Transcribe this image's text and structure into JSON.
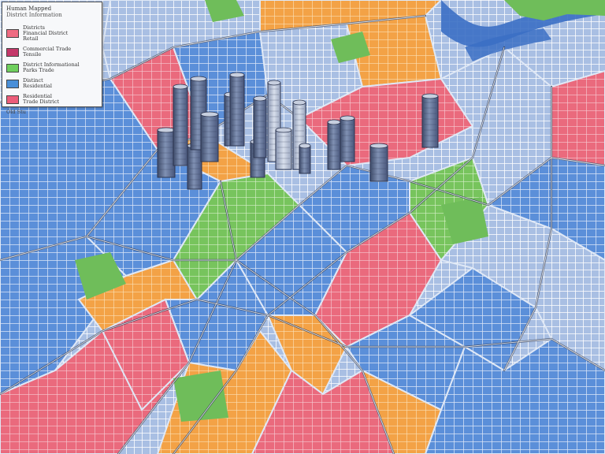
{
  "legend": {
    "title": "Human Mapped",
    "subtitle": "District Information",
    "items": [
      {
        "labels": [
          "Districts",
          "Financial District",
          "Retail"
        ],
        "color": "#ee6b82"
      },
      {
        "labels": [
          "Commercial Trade",
          "Tensile"
        ],
        "color": "#c4386a"
      },
      {
        "labels": [
          "District Informational",
          "Parks Trade"
        ],
        "color": "#6fcf5e"
      },
      {
        "labels": [
          "Distinct",
          "Residential"
        ],
        "color": "#4a8fd8"
      },
      {
        "labels": [
          "Residential",
          "Trade District"
        ],
        "color": "#ec5d7a"
      }
    ],
    "footer": "Old Stu"
  },
  "map": {
    "palette": {
      "water": "#3b6fc4",
      "park": "#6fbd5a",
      "background": "#c9d6ea",
      "road": "#ffffff",
      "avenue": "#2f3b55",
      "towers": "#5a6b8c"
    }
  }
}
